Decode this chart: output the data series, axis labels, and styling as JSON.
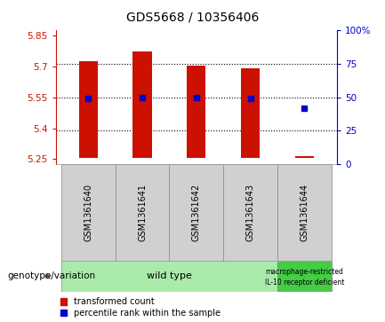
{
  "title": "GDS5668 / 10356406",
  "samples": [
    "GSM1361640",
    "GSM1361641",
    "GSM1361642",
    "GSM1361643",
    "GSM1361644"
  ],
  "bar_bottoms": [
    5.255,
    5.255,
    5.255,
    5.255,
    5.255
  ],
  "bar_tops": [
    5.725,
    5.775,
    5.705,
    5.69,
    5.265
  ],
  "percentile_y": [
    5.544,
    5.549,
    5.549,
    5.544,
    5.498
  ],
  "ylim": [
    5.225,
    5.875
  ],
  "y_ticks_left": [
    5.25,
    5.4,
    5.55,
    5.7,
    5.85
  ],
  "y_ticks_right_pct": [
    0,
    25,
    50,
    75,
    100
  ],
  "right_tick_labels": [
    "0",
    "25",
    "50",
    "75",
    "100%"
  ],
  "bar_color": "#cc1100",
  "dot_color": "#0000cc",
  "axis_left_color": "#cc1100",
  "axis_right_color": "#0000cc",
  "plot_bg": "#ffffff",
  "sample_bg": "#d0d0d0",
  "genotype_wt_bg": "#aaeaaa",
  "genotype_ko_bg": "#44cc44",
  "wild_type_label": "wild type",
  "ko_label_line1": "macrophage-restricted",
  "ko_label_line2": "IL-10 receptor deficient",
  "genotype_label": "genotype/variation",
  "legend_red_label": "transformed count",
  "legend_blue_label": "percentile rank within the sample",
  "bar_width": 0.35
}
